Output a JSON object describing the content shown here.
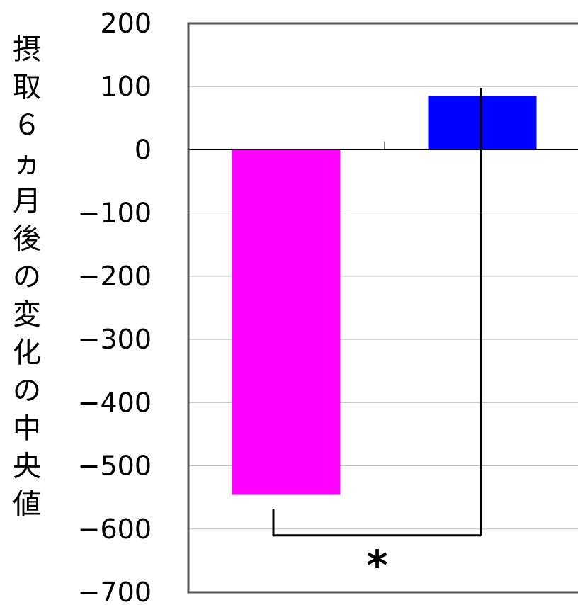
{
  "chart_data": {
    "type": "bar",
    "title": "",
    "xlabel": "",
    "ylabel": "摂取６ヵ月後の変化の中央値",
    "ylim": [
      -700,
      200
    ],
    "yticks": [
      200,
      100,
      0,
      -100,
      -200,
      -300,
      -400,
      -500,
      -600,
      -700
    ],
    "ytick_labels": [
      "200",
      "100",
      "0",
      "−100",
      "−200",
      "−300",
      "−400",
      "−500",
      "−600",
      "−700"
    ],
    "grid": true,
    "legend": "none",
    "categories": [
      "",
      ""
    ],
    "series": [
      {
        "values": [
          -546,
          85
        ]
      }
    ],
    "bar_colors": [
      "#ff00ff",
      "#0000ff"
    ],
    "significance": {
      "from_category": 0,
      "to_category": 1,
      "bracket_level": -610,
      "label": "*"
    }
  }
}
